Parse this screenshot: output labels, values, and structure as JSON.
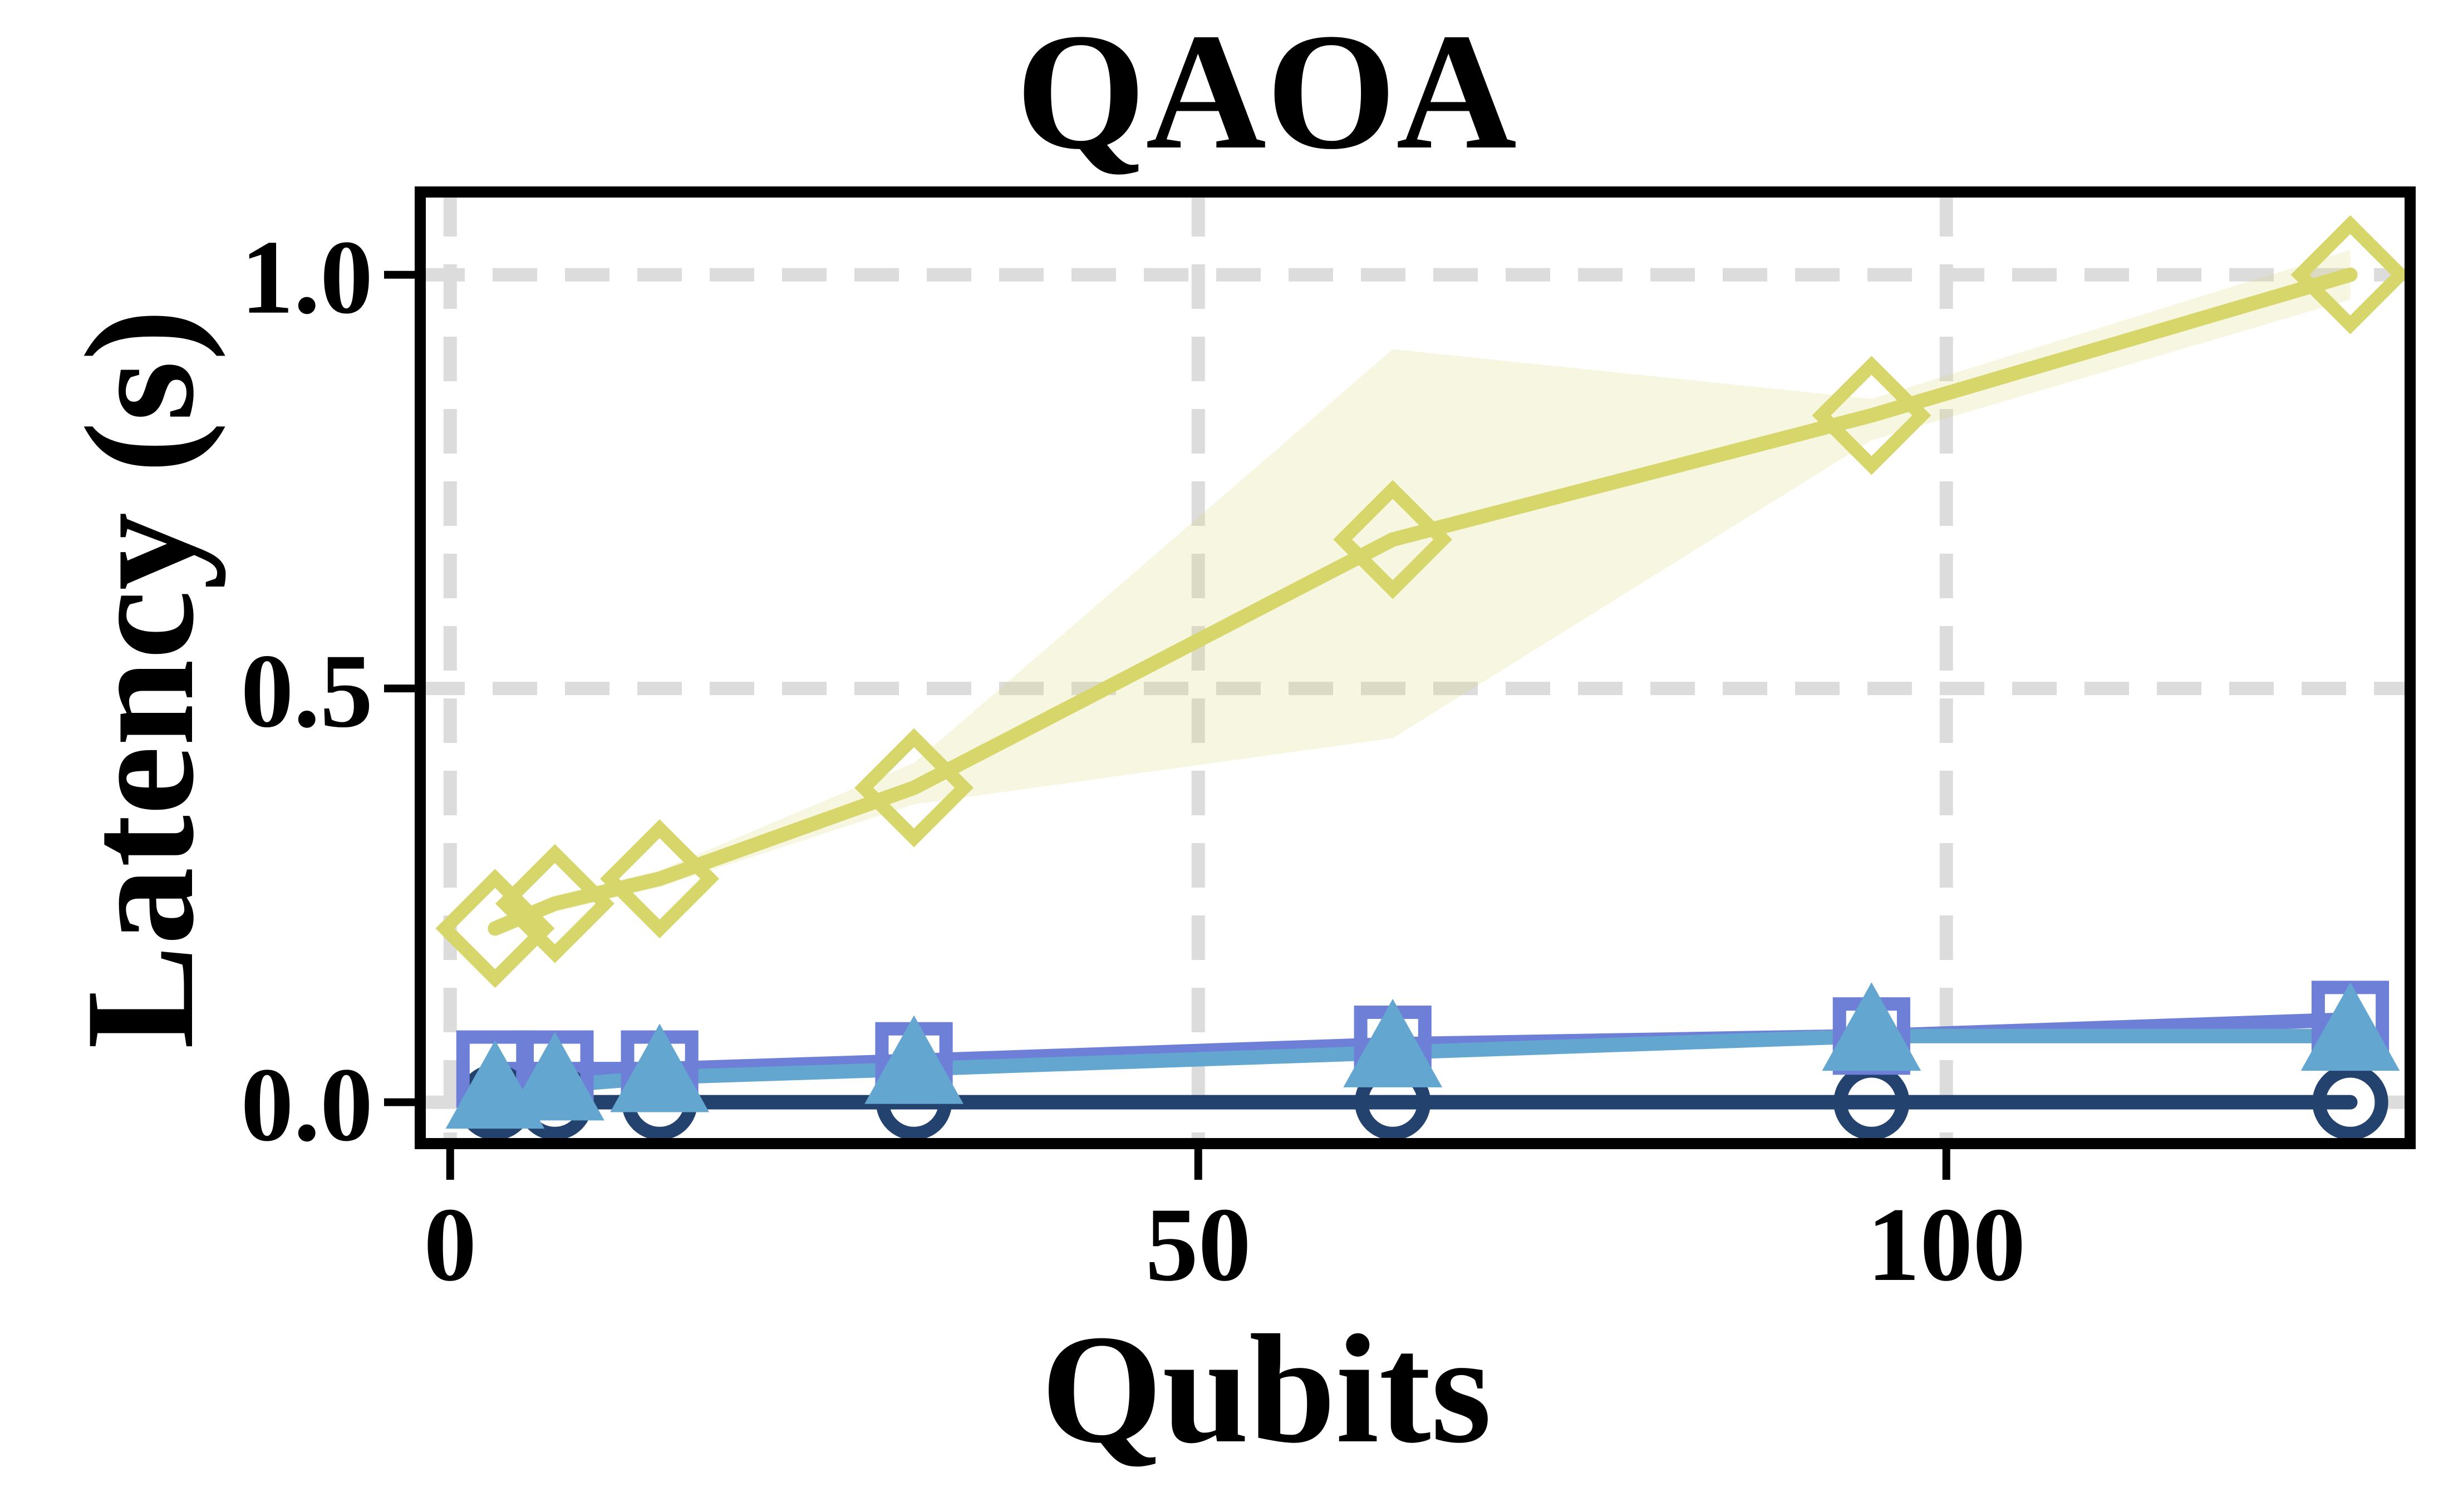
{
  "chart_data": {
    "type": "line",
    "title": "QAOA",
    "xlabel": "Qubits",
    "ylabel": "Latency (s)",
    "xlim": [
      -2,
      131
    ],
    "ylim": [
      -0.05,
      1.1
    ],
    "xticks": [
      0,
      50,
      100
    ],
    "yticks": [
      0.0,
      0.5,
      1.0
    ],
    "xtick_labels": [
      "0",
      "50",
      "100"
    ],
    "ytick_labels": [
      "0.0",
      "0.5",
      "1.0"
    ],
    "grid": true,
    "legend": false,
    "x": [
      3,
      7,
      14,
      31,
      63,
      95,
      127
    ],
    "series": [
      {
        "marker": "circle",
        "color": "#23426e",
        "values": [
          0.0,
          0.0,
          0.0,
          0.0,
          0.0,
          0.0,
          0.0
        ]
      },
      {
        "marker": "square",
        "color": "#6d7fd6",
        "values": [
          0.04,
          0.04,
          0.04,
          0.05,
          0.07,
          0.08,
          0.1
        ]
      },
      {
        "marker": "triangle",
        "color": "#63a7d1",
        "values": [
          0.01,
          0.02,
          0.03,
          0.04,
          0.06,
          0.08,
          0.08
        ]
      },
      {
        "marker": "diamond",
        "color": "#d6d66b",
        "values": [
          0.21,
          0.24,
          0.27,
          0.38,
          0.68,
          0.83,
          1.0
        ],
        "band_lower": [
          0.2,
          0.23,
          0.26,
          0.36,
          0.44,
          0.8,
          0.97
        ],
        "band_upper": [
          0.22,
          0.25,
          0.28,
          0.41,
          0.91,
          0.85,
          1.03
        ]
      }
    ]
  }
}
